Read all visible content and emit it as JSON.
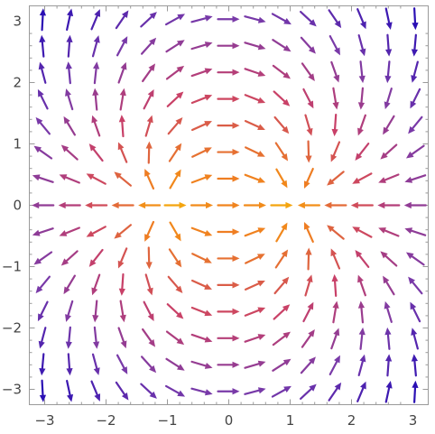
{
  "chart_data": {
    "type": "vector-field",
    "title": "",
    "xlabel": "",
    "ylabel": "",
    "xlim": [
      -3.25,
      3.25
    ],
    "ylim": [
      -3.25,
      3.25
    ],
    "x_ticks": [
      {
        "value": -3,
        "label": "−3"
      },
      {
        "value": -2,
        "label": "−2"
      },
      {
        "value": -1,
        "label": "−1"
      },
      {
        "value": 0,
        "label": "0"
      },
      {
        "value": 1,
        "label": "1"
      },
      {
        "value": 2,
        "label": "2"
      },
      {
        "value": 3,
        "label": "3"
      }
    ],
    "y_ticks": [
      {
        "value": -3,
        "label": "−3"
      },
      {
        "value": -2,
        "label": "−2"
      },
      {
        "value": -1,
        "label": "−1"
      },
      {
        "value": 0,
        "label": "0"
      },
      {
        "value": 1,
        "label": "1"
      },
      {
        "value": 2,
        "label": "2"
      },
      {
        "value": 3,
        "label": "3"
      }
    ],
    "grid": false,
    "grid_samples": 15,
    "field": "direction (1 - x^2 + y^2, -2xy)",
    "colormap": [
      "#f7c600",
      "#f08020",
      "#c84068",
      "#7a3aa8",
      "#2a0fb4"
    ],
    "color_by": "vector magnitude, yellow = small, blue = large"
  }
}
